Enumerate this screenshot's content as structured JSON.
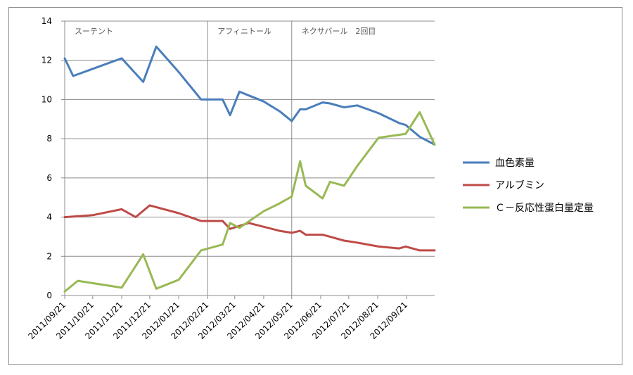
{
  "chart_data": {
    "type": "line",
    "title": "",
    "xlabel": "",
    "ylabel": "",
    "ylim": [
      0,
      14
    ],
    "yticks": [
      0,
      2,
      4,
      6,
      8,
      10,
      12,
      14
    ],
    "xlim": [
      "2011/09/21",
      "2012/10/21"
    ],
    "xticks": [
      "2011/09/21",
      "2011/10/21",
      "2011/11/21",
      "2011/12/21",
      "2012/01/21",
      "2012/02/21",
      "2012/03/21",
      "2012/04/21",
      "2012/05/21",
      "2012/06/21",
      "2012/07/21",
      "2012/08/21",
      "2012/09/21"
    ],
    "grid": "horizontal",
    "legend_position": "right",
    "annotations": [
      {
        "text": "スーテント",
        "x": "2011/09/21"
      },
      {
        "text": "アフィニトール",
        "x": "2012/02/21"
      },
      {
        "text": "ネクサバール　2回目",
        "x": "2012/05/21"
      }
    ],
    "series": [
      {
        "name": "血色素量",
        "color": "#4a7ebb",
        "points": [
          [
            "2011/09/21",
            12.1
          ],
          [
            "2011/09/30",
            11.2
          ],
          [
            "2011/11/21",
            12.1
          ],
          [
            "2011/12/14",
            10.9
          ],
          [
            "2011/12/28",
            12.7
          ],
          [
            "2012/01/21",
            11.4
          ],
          [
            "2012/02/14",
            10.0
          ],
          [
            "2012/03/08",
            10.0
          ],
          [
            "2012/03/16",
            9.2
          ],
          [
            "2012/03/26",
            10.4
          ],
          [
            "2012/04/21",
            9.9
          ],
          [
            "2012/05/08",
            9.4
          ],
          [
            "2012/05/21",
            8.9
          ],
          [
            "2012/05/30",
            9.5
          ],
          [
            "2012/06/05",
            9.5
          ],
          [
            "2012/06/23",
            9.85
          ],
          [
            "2012/07/01",
            9.8
          ],
          [
            "2012/07/16",
            9.6
          ],
          [
            "2012/07/30",
            9.7
          ],
          [
            "2012/08/22",
            9.3
          ],
          [
            "2012/09/13",
            8.8
          ],
          [
            "2012/09/20",
            8.7
          ],
          [
            "2012/10/05",
            8.1
          ],
          [
            "2012/10/21",
            7.7
          ]
        ]
      },
      {
        "name": "アルブミン",
        "color": "#be4b48",
        "points": [
          [
            "2011/09/21",
            4.0
          ],
          [
            "2011/10/21",
            4.1
          ],
          [
            "2011/11/21",
            4.4
          ],
          [
            "2011/12/06",
            4.0
          ],
          [
            "2011/12/21",
            4.6
          ],
          [
            "2012/01/21",
            4.2
          ],
          [
            "2012/02/14",
            3.8
          ],
          [
            "2012/03/08",
            3.8
          ],
          [
            "2012/03/16",
            3.4
          ],
          [
            "2012/04/05",
            3.7
          ],
          [
            "2012/05/08",
            3.3
          ],
          [
            "2012/05/21",
            3.2
          ],
          [
            "2012/05/30",
            3.3
          ],
          [
            "2012/06/05",
            3.1
          ],
          [
            "2012/06/23",
            3.1
          ],
          [
            "2012/07/01",
            3.0
          ],
          [
            "2012/07/16",
            2.8
          ],
          [
            "2012/07/30",
            2.7
          ],
          [
            "2012/08/22",
            2.5
          ],
          [
            "2012/09/13",
            2.4
          ],
          [
            "2012/09/20",
            2.5
          ],
          [
            "2012/10/05",
            2.3
          ],
          [
            "2012/10/21",
            2.3
          ]
        ]
      },
      {
        "name": "Ｃ－反応性蛋白量定量",
        "color": "#98b954",
        "points": [
          [
            "2011/09/21",
            0.2
          ],
          [
            "2011/10/05",
            0.75
          ],
          [
            "2011/11/21",
            0.4
          ],
          [
            "2011/12/14",
            2.1
          ],
          [
            "2011/12/28",
            0.35
          ],
          [
            "2012/01/21",
            0.8
          ],
          [
            "2012/02/14",
            2.3
          ],
          [
            "2012/03/08",
            2.6
          ],
          [
            "2012/03/16",
            3.7
          ],
          [
            "2012/03/26",
            3.45
          ],
          [
            "2012/04/21",
            4.3
          ],
          [
            "2012/05/08",
            4.7
          ],
          [
            "2012/05/21",
            5.05
          ],
          [
            "2012/05/30",
            6.85
          ],
          [
            "2012/06/05",
            5.6
          ],
          [
            "2012/06/23",
            4.95
          ],
          [
            "2012/07/01",
            5.8
          ],
          [
            "2012/07/16",
            5.6
          ],
          [
            "2012/07/30",
            6.6
          ],
          [
            "2012/08/22",
            8.05
          ],
          [
            "2012/09/13",
            8.2
          ],
          [
            "2012/09/20",
            8.25
          ],
          [
            "2012/10/05",
            9.35
          ],
          [
            "2012/10/21",
            7.7
          ]
        ]
      }
    ]
  }
}
